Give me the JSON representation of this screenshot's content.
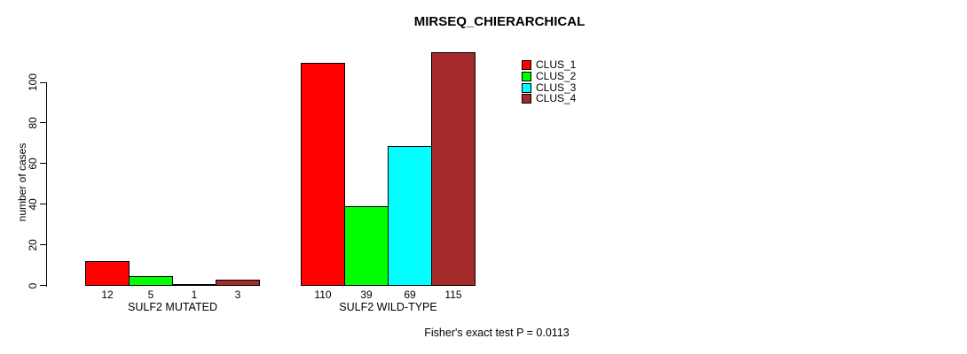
{
  "chart_data": {
    "type": "bar",
    "title": "MIRSEQ_CHIERARCHICAL",
    "ylabel": "number of cases",
    "xlabel": "",
    "ylim": [
      0,
      117
    ],
    "yticks": [
      0,
      20,
      40,
      60,
      80,
      100
    ],
    "grid": false,
    "legend_position": "top-right",
    "categories": [
      "SULF2 MUTATED",
      "SULF2 WILD-TYPE"
    ],
    "series": [
      {
        "name": "CLUS_1",
        "color": "#FF0000",
        "values": [
          12,
          110
        ]
      },
      {
        "name": "CLUS_2",
        "color": "#00FF00",
        "values": [
          5,
          39
        ]
      },
      {
        "name": "CLUS_3",
        "color": "#00FFFF",
        "values": [
          1,
          69
        ]
      },
      {
        "name": "CLUS_4",
        "color": "#A52A2A",
        "values": [
          3,
          115
        ]
      }
    ],
    "bar_value_labels": [
      [
        12,
        5,
        1,
        3
      ],
      [
        110,
        39,
        69,
        115
      ]
    ],
    "annotation": "Fisher's exact test P = 0.0113",
    "axis_color": "#000000",
    "background_color": "#FFFFFF"
  }
}
